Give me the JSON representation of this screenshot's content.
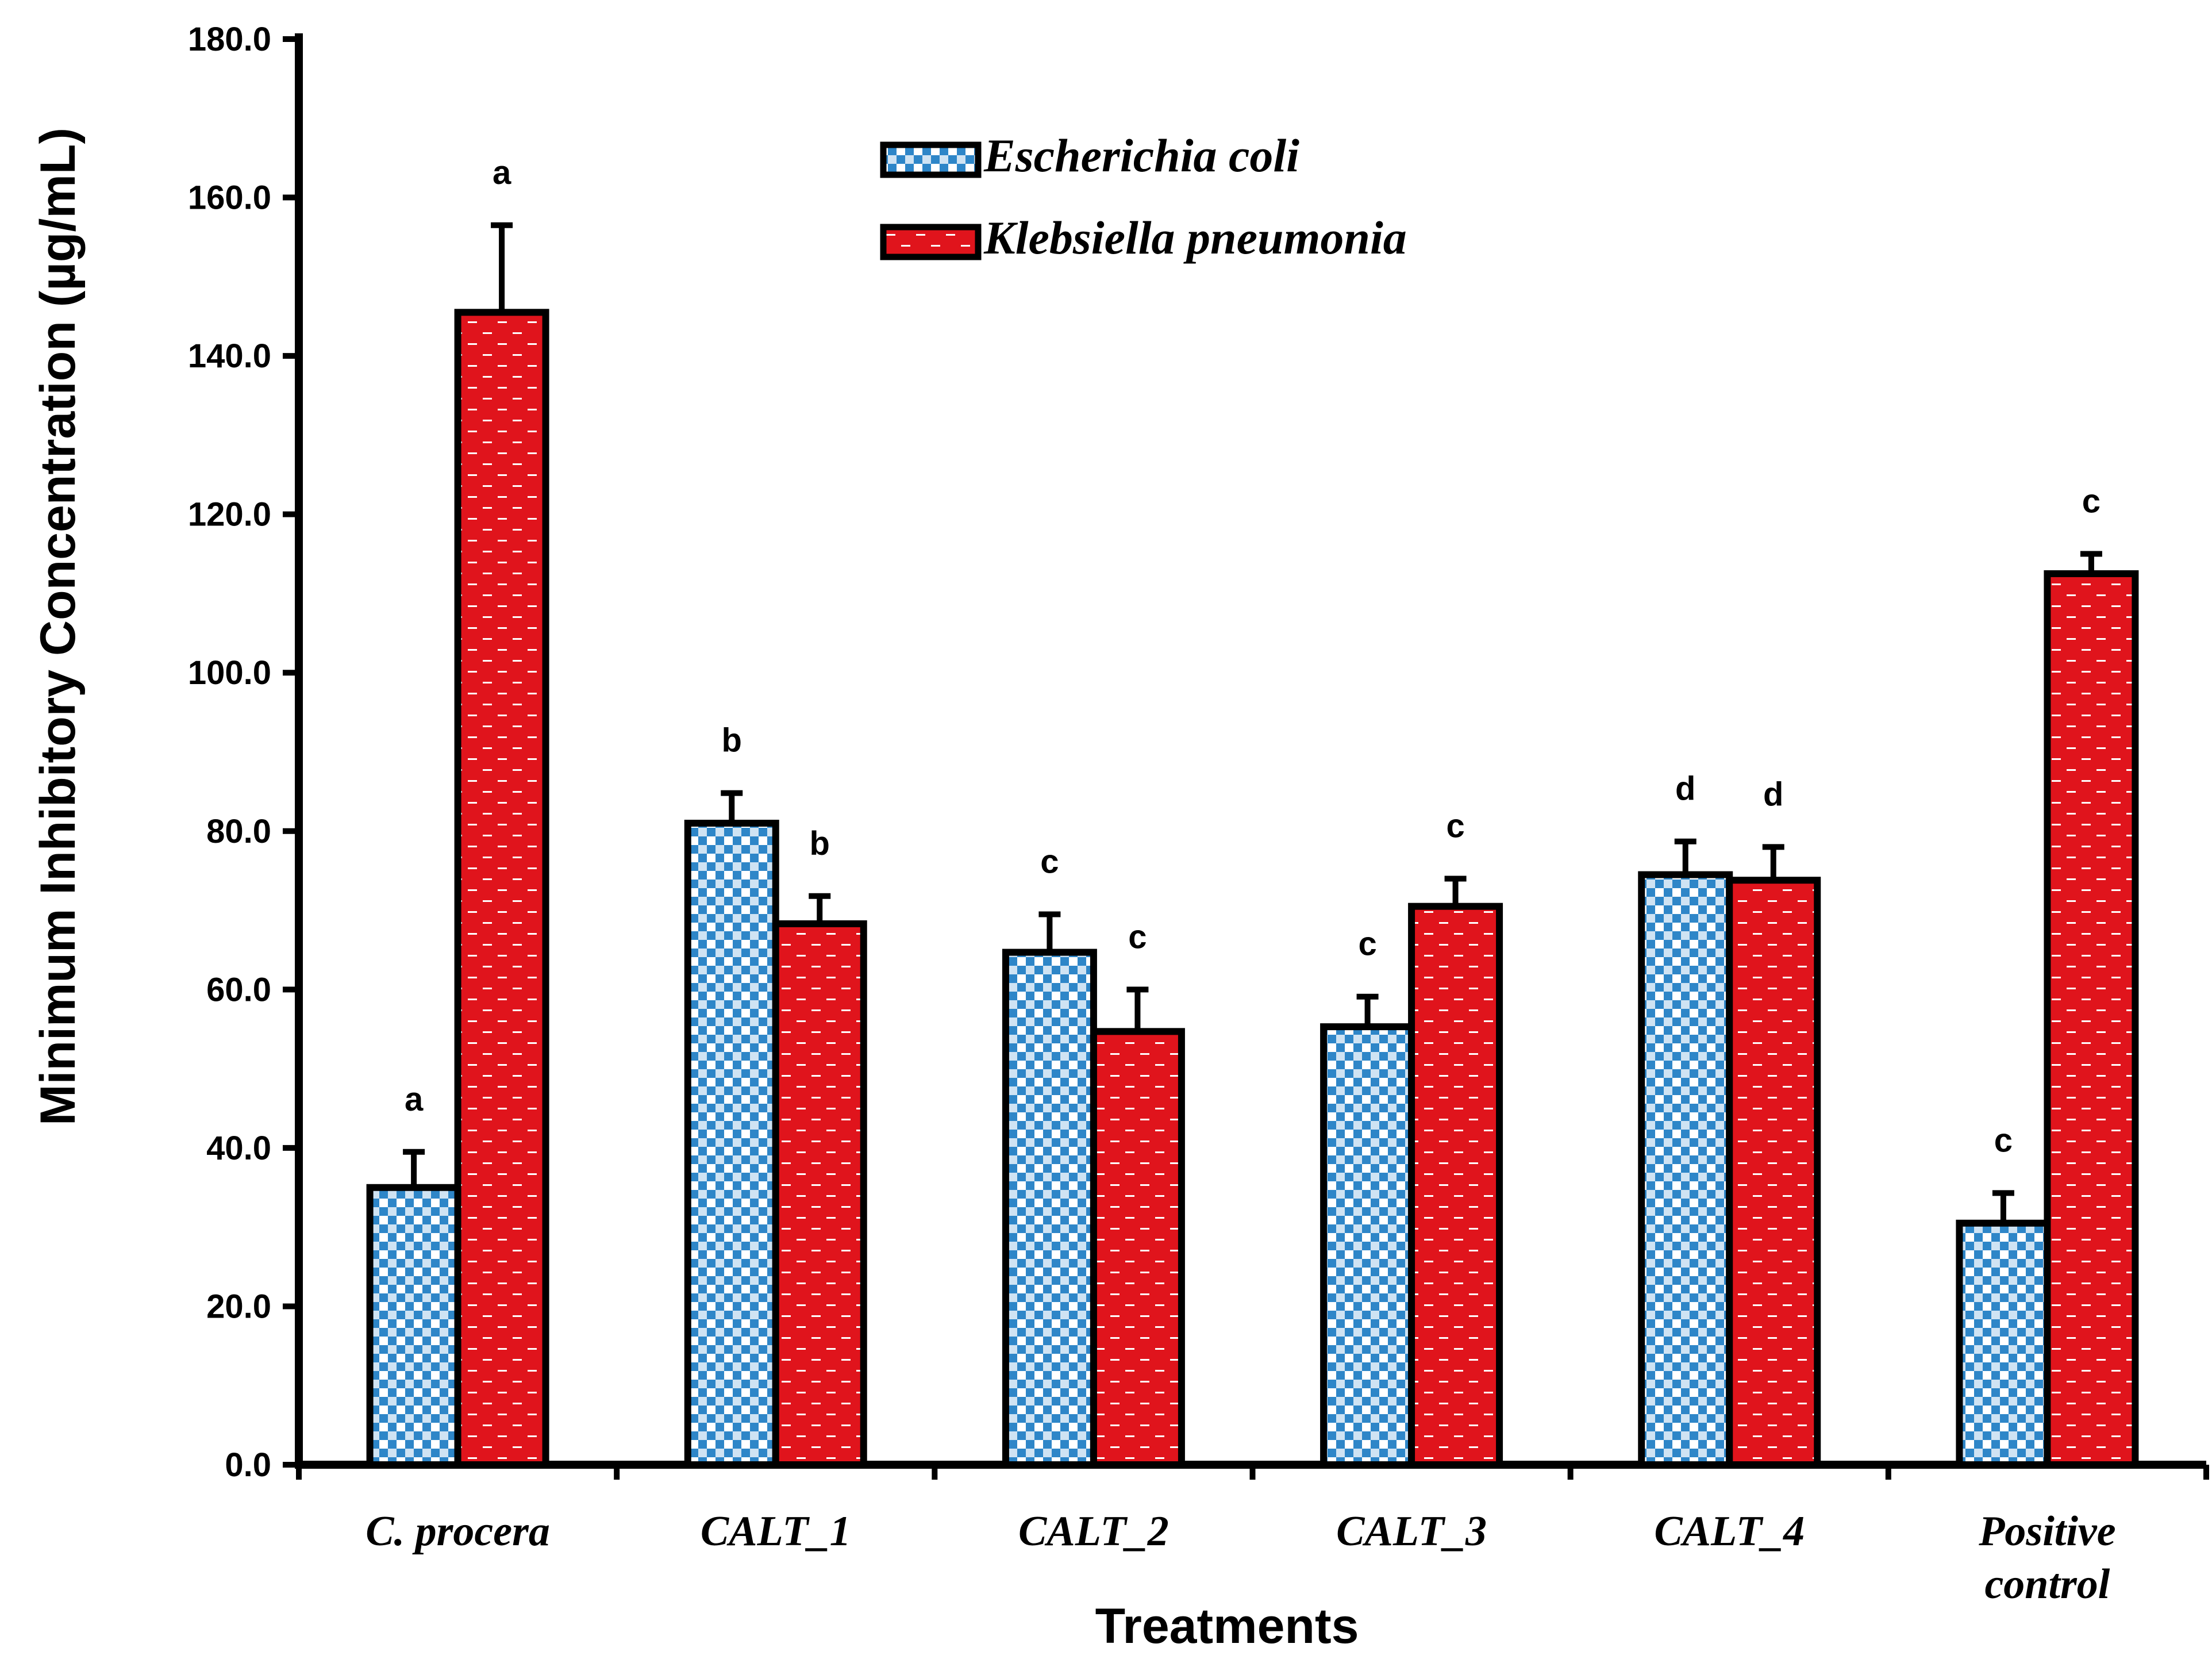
{
  "chart_data": {
    "type": "bar",
    "title": "",
    "xlabel": "Treatments",
    "ylabel": "Minimum Inhibitory Concentration (µg/mL)",
    "ylim": [
      0,
      180
    ],
    "ytick_step": 20,
    "ytick_labels": [
      "0.0",
      "20.0",
      "40.0",
      "60.0",
      "80.0",
      "100.0",
      "120.0",
      "140.0",
      "160.0",
      "180.0"
    ],
    "categories": [
      [
        "C. procera"
      ],
      [
        "CALT_1"
      ],
      [
        "CALT_2"
      ],
      [
        "CALT_3"
      ],
      [
        "CALT_4"
      ],
      [
        "Positive",
        "control"
      ]
    ],
    "series": [
      {
        "name": "Escherichia coli",
        "values": [
          35.0,
          81.0,
          64.7,
          55.3,
          74.5,
          30.5
        ],
        "errors": [
          4.5,
          3.8,
          4.8,
          3.8,
          4.2,
          3.8
        ],
        "labels": [
          "a",
          "b",
          "c",
          "c",
          "d",
          "c"
        ],
        "color": "#2e86c8",
        "pattern": "checker"
      },
      {
        "name": "Klebsiella pneumonia",
        "values": [
          145.5,
          68.3,
          54.7,
          70.5,
          73.8,
          112.5
        ],
        "errors": [
          11.0,
          3.5,
          5.3,
          3.5,
          4.2,
          2.5
        ],
        "labels": [
          "a",
          "b",
          "c",
          "c",
          "d",
          "c"
        ],
        "color": "#e0141c",
        "pattern": "dash"
      }
    ],
    "legend_position": "top-center",
    "grid": false
  }
}
